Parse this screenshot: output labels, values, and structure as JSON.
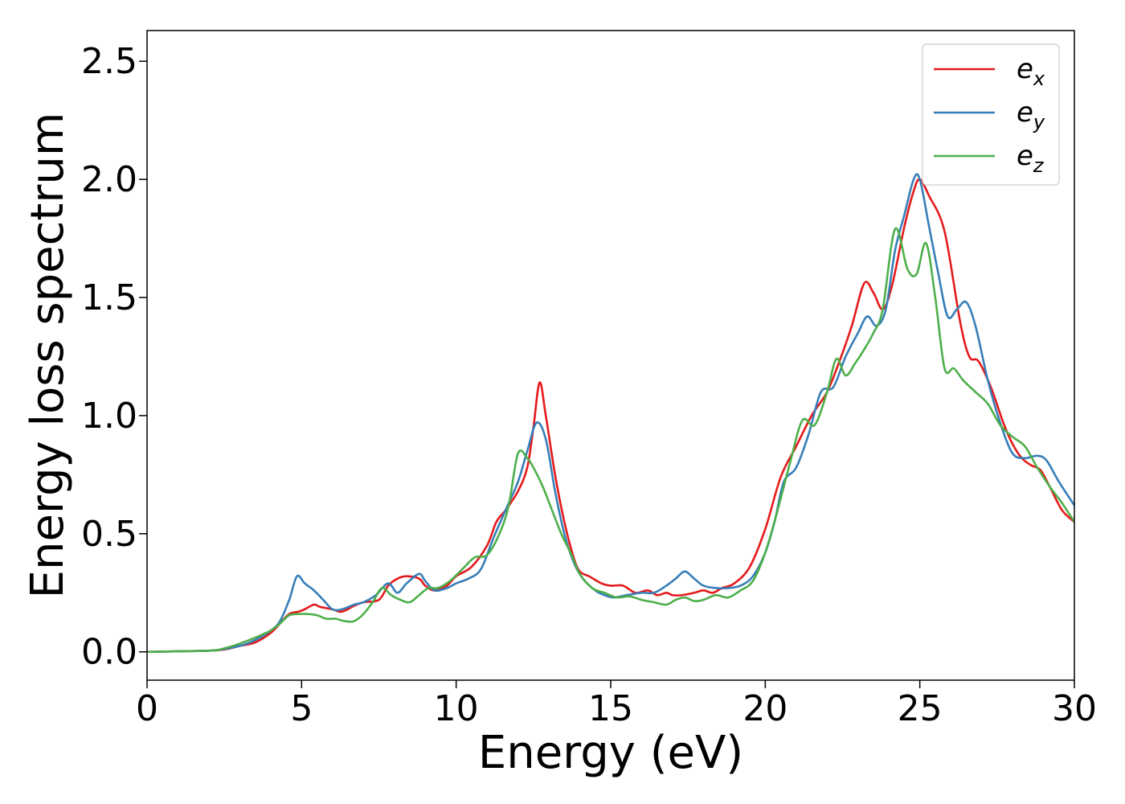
{
  "chart_data": {
    "type": "line",
    "title": "",
    "xlabel": "Energy (eV)",
    "ylabel": "Energy loss spectrum",
    "xlim": [
      0,
      30
    ],
    "ylim": [
      -0.12,
      2.63
    ],
    "xticks": [
      0,
      5,
      10,
      15,
      20,
      25,
      30
    ],
    "yticks": [
      0.0,
      0.5,
      1.0,
      1.5,
      2.0,
      2.5
    ],
    "xtick_labels": [
      "0",
      "5",
      "10",
      "15",
      "20",
      "25",
      "30"
    ],
    "ytick_labels": [
      "0.0",
      "0.5",
      "1.0",
      "1.5",
      "2.0",
      "2.5"
    ],
    "grid": false,
    "legend_position": "top-right",
    "series": [
      {
        "name": "e_x",
        "legend_base": "e",
        "legend_sub": "x",
        "color": "#e41a1c",
        "x": [
          0,
          2,
          2.5,
          3,
          3.5,
          4,
          4.3,
          4.6,
          4.9,
          5.1,
          5.4,
          5.6,
          6,
          6.3,
          6.7,
          7,
          7.5,
          7.8,
          8.1,
          8.4,
          8.8,
          9,
          9.3,
          9.7,
          10,
          10.5,
          11,
          11.3,
          11.6,
          12,
          12.3,
          12.5,
          12.7,
          12.9,
          13.2,
          13.5,
          13.8,
          14,
          14.3,
          14.7,
          15,
          15.4,
          15.8,
          16.2,
          16.5,
          16.8,
          17,
          17.3,
          17.7,
          18,
          18.3,
          18.6,
          19,
          19.5,
          20,
          20.5,
          21,
          21.5,
          22,
          22.4,
          22.8,
          23.2,
          23.5,
          23.8,
          24.1,
          24.5,
          24.8,
          25,
          25.3,
          25.8,
          26.3,
          26.6,
          26.9,
          27.3,
          27.7,
          28,
          28.3,
          28.6,
          28.9,
          29.2,
          29.6,
          30
        ],
        "y": [
          0,
          0.005,
          0.01,
          0.025,
          0.04,
          0.08,
          0.12,
          0.16,
          0.17,
          0.18,
          0.2,
          0.19,
          0.18,
          0.17,
          0.195,
          0.21,
          0.22,
          0.28,
          0.31,
          0.32,
          0.31,
          0.28,
          0.26,
          0.28,
          0.32,
          0.36,
          0.45,
          0.55,
          0.6,
          0.68,
          0.78,
          0.95,
          1.14,
          1.0,
          0.75,
          0.55,
          0.4,
          0.34,
          0.32,
          0.29,
          0.28,
          0.28,
          0.25,
          0.26,
          0.24,
          0.25,
          0.24,
          0.24,
          0.25,
          0.26,
          0.25,
          0.27,
          0.29,
          0.36,
          0.52,
          0.74,
          0.87,
          1.0,
          1.1,
          1.23,
          1.38,
          1.56,
          1.52,
          1.45,
          1.55,
          1.8,
          1.95,
          2.0,
          1.93,
          1.78,
          1.4,
          1.25,
          1.23,
          1.12,
          0.97,
          0.88,
          0.82,
          0.79,
          0.77,
          0.7,
          0.6,
          0.55
        ]
      },
      {
        "name": "e_y",
        "legend_base": "e",
        "legend_sub": "y",
        "color": "#377eb8",
        "x": [
          0,
          2,
          2.5,
          3,
          3.5,
          4,
          4.3,
          4.6,
          4.85,
          5.1,
          5.4,
          5.7,
          6,
          6.3,
          6.7,
          7,
          7.4,
          7.8,
          8.1,
          8.4,
          8.8,
          9,
          9.3,
          9.7,
          10,
          10.4,
          10.8,
          11.2,
          11.6,
          12,
          12.3,
          12.6,
          12.9,
          13.2,
          13.5,
          13.8,
          14.1,
          14.5,
          14.8,
          15.1,
          15.5,
          16,
          16.4,
          16.8,
          17.1,
          17.4,
          17.7,
          18,
          18.4,
          18.8,
          19.2,
          19.6,
          20,
          20.3,
          20.6,
          21,
          21.4,
          21.8,
          22.2,
          22.6,
          23,
          23.3,
          23.6,
          23.9,
          24.2,
          24.5,
          24.8,
          25,
          25.3,
          25.6,
          25.9,
          26.2,
          26.5,
          26.8,
          27.2,
          27.6,
          28,
          28.4,
          28.8,
          29.1,
          29.5,
          30
        ],
        "y": [
          0,
          0.005,
          0.012,
          0.025,
          0.05,
          0.09,
          0.13,
          0.22,
          0.32,
          0.29,
          0.26,
          0.22,
          0.18,
          0.18,
          0.2,
          0.21,
          0.24,
          0.29,
          0.25,
          0.29,
          0.33,
          0.3,
          0.26,
          0.27,
          0.29,
          0.31,
          0.35,
          0.48,
          0.6,
          0.72,
          0.85,
          0.97,
          0.9,
          0.68,
          0.5,
          0.38,
          0.31,
          0.26,
          0.24,
          0.23,
          0.24,
          0.25,
          0.25,
          0.28,
          0.31,
          0.34,
          0.31,
          0.28,
          0.27,
          0.27,
          0.28,
          0.32,
          0.42,
          0.55,
          0.72,
          0.78,
          0.92,
          1.1,
          1.12,
          1.25,
          1.35,
          1.42,
          1.38,
          1.45,
          1.7,
          1.85,
          2.0,
          2.0,
          1.8,
          1.6,
          1.42,
          1.45,
          1.48,
          1.38,
          1.15,
          0.97,
          0.84,
          0.82,
          0.83,
          0.81,
          0.72,
          0.62
        ]
      },
      {
        "name": "e_z",
        "legend_base": "e",
        "legend_sub": "z",
        "color": "#4daf4a",
        "x": [
          0,
          2,
          2.5,
          3,
          3.5,
          4,
          4.3,
          4.6,
          4.9,
          5.2,
          5.5,
          5.8,
          6.1,
          6.4,
          6.7,
          7,
          7.3,
          7.6,
          7.9,
          8.2,
          8.5,
          8.8,
          9.1,
          9.4,
          9.8,
          10.2,
          10.6,
          11,
          11.4,
          11.7,
          12,
          12.3,
          12.5,
          12.8,
          13.1,
          13.4,
          13.7,
          14,
          14.4,
          14.8,
          15.2,
          15.6,
          16,
          16.4,
          16.8,
          17.1,
          17.4,
          17.7,
          18,
          18.4,
          18.8,
          19.2,
          19.6,
          20,
          20.4,
          20.8,
          21.2,
          21.6,
          22,
          22.3,
          22.6,
          22.9,
          23.2,
          23.5,
          23.8,
          24.2,
          24.6,
          24.9,
          25.2,
          25.5,
          25.8,
          26.1,
          26.4,
          26.8,
          27.2,
          27.6,
          28,
          28.4,
          28.8,
          29.2,
          29.6,
          30
        ],
        "y": [
          0,
          0.005,
          0.015,
          0.035,
          0.06,
          0.09,
          0.12,
          0.155,
          0.16,
          0.16,
          0.155,
          0.14,
          0.14,
          0.13,
          0.13,
          0.16,
          0.21,
          0.27,
          0.24,
          0.22,
          0.21,
          0.24,
          0.27,
          0.27,
          0.3,
          0.35,
          0.4,
          0.41,
          0.5,
          0.62,
          0.84,
          0.82,
          0.78,
          0.7,
          0.6,
          0.5,
          0.42,
          0.33,
          0.27,
          0.25,
          0.23,
          0.235,
          0.22,
          0.21,
          0.2,
          0.22,
          0.23,
          0.215,
          0.22,
          0.24,
          0.23,
          0.26,
          0.3,
          0.42,
          0.6,
          0.8,
          0.98,
          0.96,
          1.1,
          1.24,
          1.17,
          1.22,
          1.28,
          1.35,
          1.45,
          1.79,
          1.62,
          1.6,
          1.73,
          1.5,
          1.2,
          1.2,
          1.15,
          1.1,
          1.05,
          0.96,
          0.91,
          0.87,
          0.78,
          0.7,
          0.63,
          0.55
        ]
      }
    ]
  }
}
